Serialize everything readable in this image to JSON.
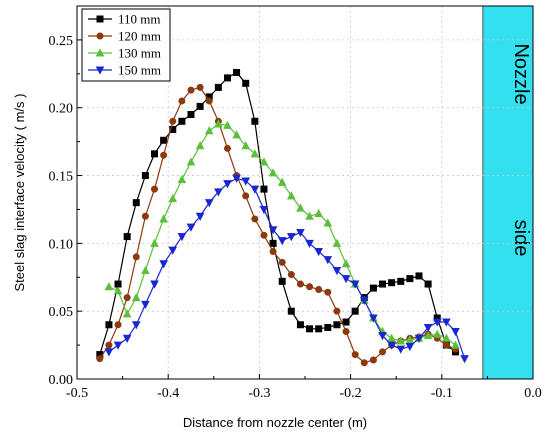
{
  "chart_data": {
    "type": "line",
    "xlabel": "Distance from nozzle center (m)",
    "ylabel": "Steel slag interface velocity ( m/s )",
    "xlim": [
      -0.5,
      0.0
    ],
    "ylim": [
      0.0,
      0.275
    ],
    "x_ticks": [
      -0.5,
      -0.4,
      -0.3,
      -0.2,
      -0.1,
      0.0
    ],
    "x_tick_labels": [
      "-0.5",
      "-0.4",
      "-0.3",
      "-0.2",
      "-0.1",
      "0.0"
    ],
    "y_ticks": [
      0.0,
      0.05,
      0.1,
      0.15,
      0.2,
      0.25
    ],
    "y_tick_labels": [
      "0.00",
      "0.05",
      "0.10",
      "0.15",
      "0.20",
      "0.25"
    ],
    "legend_position": "top-left",
    "nozzle_region": {
      "x_start": -0.055,
      "x_end": 0.0,
      "color": "#33e0f0",
      "label_line1": "Nozzle",
      "label_line2": "side"
    },
    "series": [
      {
        "name": "110 mm",
        "color": "#000000",
        "marker": "square",
        "x": [
          -0.475,
          -0.465,
          -0.455,
          -0.445,
          -0.435,
          -0.425,
          -0.415,
          -0.405,
          -0.395,
          -0.385,
          -0.375,
          -0.365,
          -0.355,
          -0.345,
          -0.335,
          -0.325,
          -0.315,
          -0.305,
          -0.295,
          -0.285,
          -0.275,
          -0.265,
          -0.255,
          -0.245,
          -0.235,
          -0.225,
          -0.215,
          -0.205,
          -0.195,
          -0.185,
          -0.175,
          -0.165,
          -0.155,
          -0.145,
          -0.135,
          -0.125,
          -0.115,
          -0.105,
          -0.095,
          -0.085
        ],
        "y": [
          0.018,
          0.04,
          0.07,
          0.105,
          0.13,
          0.15,
          0.166,
          0.176,
          0.184,
          0.19,
          0.195,
          0.201,
          0.208,
          0.215,
          0.222,
          0.226,
          0.218,
          0.19,
          0.14,
          0.1,
          0.072,
          0.05,
          0.04,
          0.037,
          0.037,
          0.038,
          0.04,
          0.042,
          0.05,
          0.06,
          0.067,
          0.07,
          0.071,
          0.072,
          0.074,
          0.076,
          0.07,
          0.045,
          0.025,
          0.02
        ]
      },
      {
        "name": "120 mm",
        "color": "#8b3a0e",
        "marker": "circle",
        "x": [
          -0.475,
          -0.465,
          -0.455,
          -0.445,
          -0.435,
          -0.425,
          -0.415,
          -0.405,
          -0.395,
          -0.385,
          -0.375,
          -0.365,
          -0.355,
          -0.345,
          -0.335,
          -0.325,
          -0.315,
          -0.305,
          -0.295,
          -0.285,
          -0.275,
          -0.265,
          -0.255,
          -0.245,
          -0.235,
          -0.225,
          -0.215,
          -0.205,
          -0.195,
          -0.185,
          -0.175,
          -0.165,
          -0.155,
          -0.145,
          -0.135,
          -0.125,
          -0.115,
          -0.105,
          -0.095,
          -0.085
        ],
        "y": [
          0.015,
          0.025,
          0.04,
          0.06,
          0.09,
          0.12,
          0.14,
          0.165,
          0.19,
          0.205,
          0.213,
          0.215,
          0.205,
          0.19,
          0.17,
          0.15,
          0.135,
          0.118,
          0.106,
          0.094,
          0.086,
          0.077,
          0.07,
          0.068,
          0.066,
          0.064,
          0.05,
          0.035,
          0.018,
          0.012,
          0.014,
          0.02,
          0.025,
          0.028,
          0.03,
          0.031,
          0.033,
          0.03,
          0.025,
          0.022
        ]
      },
      {
        "name": "130 mm",
        "color": "#5cbf3a",
        "marker": "triangle-up",
        "x": [
          -0.465,
          -0.455,
          -0.445,
          -0.435,
          -0.425,
          -0.415,
          -0.405,
          -0.395,
          -0.385,
          -0.375,
          -0.365,
          -0.355,
          -0.345,
          -0.335,
          -0.325,
          -0.315,
          -0.305,
          -0.295,
          -0.285,
          -0.275,
          -0.265,
          -0.255,
          -0.245,
          -0.235,
          -0.225,
          -0.215,
          -0.205,
          -0.195,
          -0.185,
          -0.175,
          -0.165,
          -0.155,
          -0.145,
          -0.135,
          -0.125,
          -0.115,
          -0.105,
          -0.095,
          -0.085
        ],
        "y": [
          0.068,
          0.065,
          0.048,
          0.06,
          0.08,
          0.1,
          0.118,
          0.133,
          0.147,
          0.16,
          0.172,
          0.183,
          0.188,
          0.187,
          0.18,
          0.172,
          0.166,
          0.16,
          0.152,
          0.145,
          0.135,
          0.126,
          0.12,
          0.122,
          0.115,
          0.1,
          0.085,
          0.07,
          0.058,
          0.045,
          0.035,
          0.03,
          0.028,
          0.029,
          0.03,
          0.032,
          0.033,
          0.03,
          0.025
        ]
      },
      {
        "name": "150 mm",
        "color": "#1a27d0",
        "marker": "triangle-down",
        "x": [
          -0.465,
          -0.455,
          -0.445,
          -0.435,
          -0.425,
          -0.415,
          -0.405,
          -0.395,
          -0.385,
          -0.375,
          -0.365,
          -0.355,
          -0.345,
          -0.335,
          -0.325,
          -0.315,
          -0.305,
          -0.295,
          -0.285,
          -0.275,
          -0.265,
          -0.255,
          -0.245,
          -0.235,
          -0.225,
          -0.215,
          -0.205,
          -0.195,
          -0.185,
          -0.175,
          -0.165,
          -0.155,
          -0.145,
          -0.135,
          -0.125,
          -0.115,
          -0.105,
          -0.095,
          -0.085,
          -0.075
        ],
        "y": [
          0.02,
          0.025,
          0.03,
          0.04,
          0.055,
          0.07,
          0.085,
          0.095,
          0.105,
          0.112,
          0.12,
          0.13,
          0.138,
          0.144,
          0.148,
          0.146,
          0.14,
          0.125,
          0.11,
          0.102,
          0.105,
          0.108,
          0.1,
          0.094,
          0.088,
          0.08,
          0.074,
          0.07,
          0.058,
          0.045,
          0.032,
          0.025,
          0.022,
          0.024,
          0.03,
          0.038,
          0.042,
          0.042,
          0.035,
          0.015
        ]
      }
    ]
  }
}
